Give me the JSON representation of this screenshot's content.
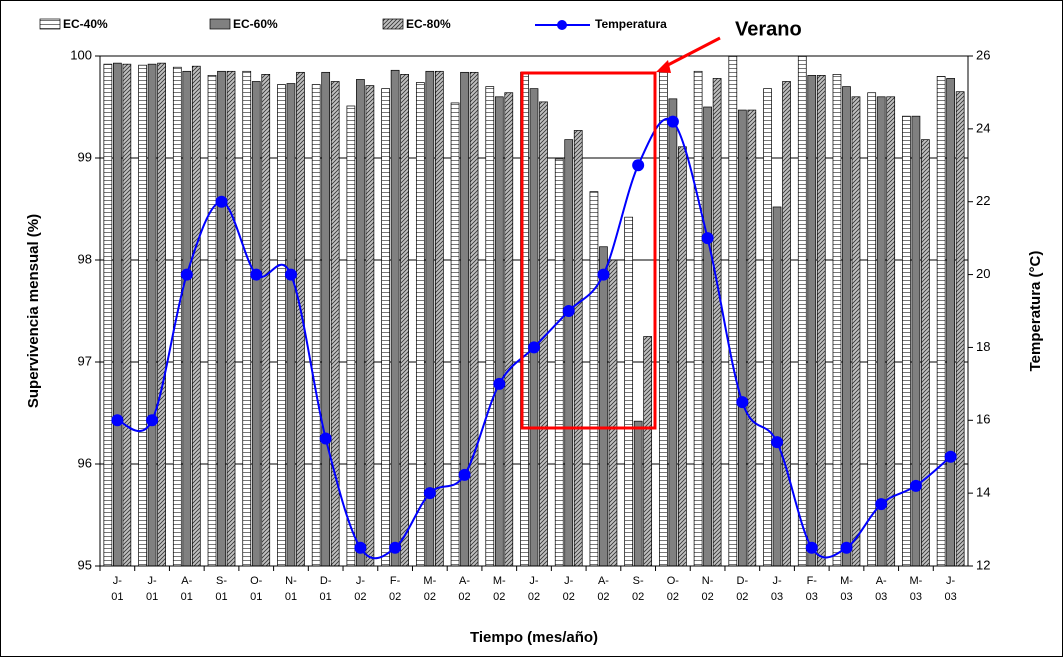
{
  "chart_data": {
    "type": "bar_line",
    "xlabel": "Tiempo (mes/año)",
    "ylabel": "Supervivencia mensual (%)",
    "y2label": "Temperatura (°C)",
    "annotation": {
      "text": "Verano",
      "color": "#ff0000"
    },
    "categories": [
      [
        "J-",
        "01"
      ],
      [
        "J-",
        "01"
      ],
      [
        "A-",
        "01"
      ],
      [
        "S-",
        "01"
      ],
      [
        "O-",
        "01"
      ],
      [
        "N-",
        "01"
      ],
      [
        "D-",
        "01"
      ],
      [
        "J-",
        "02"
      ],
      [
        "F-",
        "02"
      ],
      [
        "M-",
        "02"
      ],
      [
        "A-",
        "02"
      ],
      [
        "M-",
        "02"
      ],
      [
        "J-",
        "02"
      ],
      [
        "J-",
        "02"
      ],
      [
        "A-",
        "02"
      ],
      [
        "S-",
        "02"
      ],
      [
        "O-",
        "02"
      ],
      [
        "N-",
        "02"
      ],
      [
        "D-",
        "02"
      ],
      [
        "J-",
        "03"
      ],
      [
        "F-",
        "03"
      ],
      [
        "M-",
        "03"
      ],
      [
        "A-",
        "03"
      ],
      [
        "M-",
        "03"
      ],
      [
        "J-",
        "03"
      ]
    ],
    "series": [
      {
        "name": "EC-40%",
        "type": "bar",
        "color": "#ffffff",
        "pattern": "horizontal",
        "values": [
          99.92,
          99.91,
          99.89,
          99.81,
          99.85,
          99.72,
          99.72,
          99.51,
          99.68,
          99.74,
          99.54,
          99.7,
          99.84,
          98.99,
          98.67,
          98.42,
          99.85,
          99.85,
          100.0,
          99.68,
          100.0,
          99.82,
          99.64,
          99.41,
          99.8
        ]
      },
      {
        "name": "EC-60%",
        "type": "bar",
        "color": "#808080",
        "pattern": "solid",
        "values": [
          99.93,
          99.92,
          99.85,
          99.85,
          99.75,
          99.73,
          99.84,
          99.77,
          99.86,
          99.85,
          99.84,
          99.6,
          99.68,
          99.18,
          98.13,
          96.42,
          99.58,
          99.5,
          99.47,
          98.52,
          99.81,
          99.7,
          99.6,
          99.41,
          99.78
        ]
      },
      {
        "name": "EC-80%",
        "type": "bar",
        "color": "#c0c0c0",
        "pattern": "diagonal",
        "values": [
          99.92,
          99.93,
          99.9,
          99.85,
          99.82,
          99.84,
          99.75,
          99.71,
          99.82,
          99.85,
          99.84,
          99.64,
          99.55,
          99.27,
          98.0,
          97.25,
          99.11,
          99.78,
          99.47,
          99.75,
          99.81,
          99.6,
          99.6,
          99.18,
          99.65
        ]
      },
      {
        "name": "Temperatura",
        "type": "line",
        "axis": "y2",
        "color": "#0000ff",
        "values": [
          16,
          16,
          20,
          22,
          20,
          20,
          15.5,
          12.5,
          12.5,
          14,
          14.5,
          17,
          18,
          19,
          20,
          23,
          24.2,
          21,
          16.5,
          15.4,
          12.5,
          12.5,
          13.7,
          14.2,
          15
        ]
      }
    ],
    "ylim": [
      95,
      100
    ],
    "yticks": [
      95,
      96,
      97,
      98,
      99,
      100
    ],
    "y2lim": [
      12,
      26
    ],
    "y2ticks": [
      12,
      14,
      16,
      18,
      20,
      22,
      24,
      26
    ],
    "grid": true
  }
}
